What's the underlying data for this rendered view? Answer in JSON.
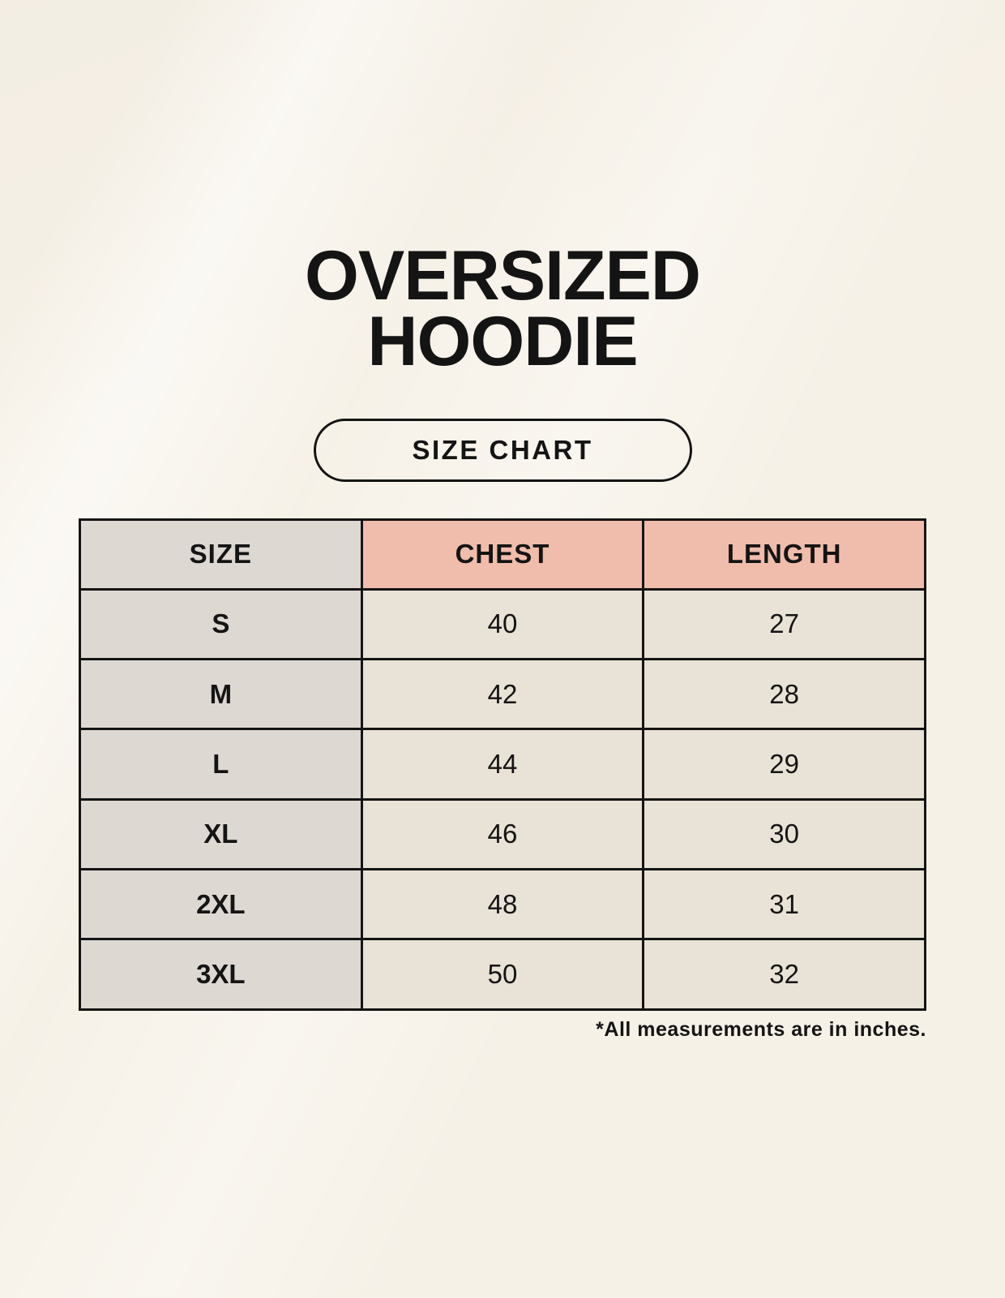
{
  "page": {
    "title": "OVERSIZED HOODIE",
    "size_chart_button_label": "SIZE CHART",
    "footnote": "*All measurements are in inches."
  },
  "table": {
    "columns": [
      "SIZE",
      "CHEST",
      "LENGTH"
    ],
    "rows": [
      {
        "size": "S",
        "chest": "40",
        "length": "27"
      },
      {
        "size": "M",
        "chest": "42",
        "length": "28"
      },
      {
        "size": "L",
        "chest": "44",
        "length": "29"
      },
      {
        "size": "XL",
        "chest": "46",
        "length": "30"
      },
      {
        "size": "2XL",
        "chest": "48",
        "length": "31"
      },
      {
        "size": "3XL",
        "chest": "50",
        "length": "32"
      }
    ],
    "units_note": "inches"
  },
  "colors": {
    "background": "#f6f1e7",
    "header_pink": "#f0bcab",
    "size_column_gray": "#ded8d2",
    "cell_cream": "#e9e2d6",
    "ink": "#141414"
  }
}
